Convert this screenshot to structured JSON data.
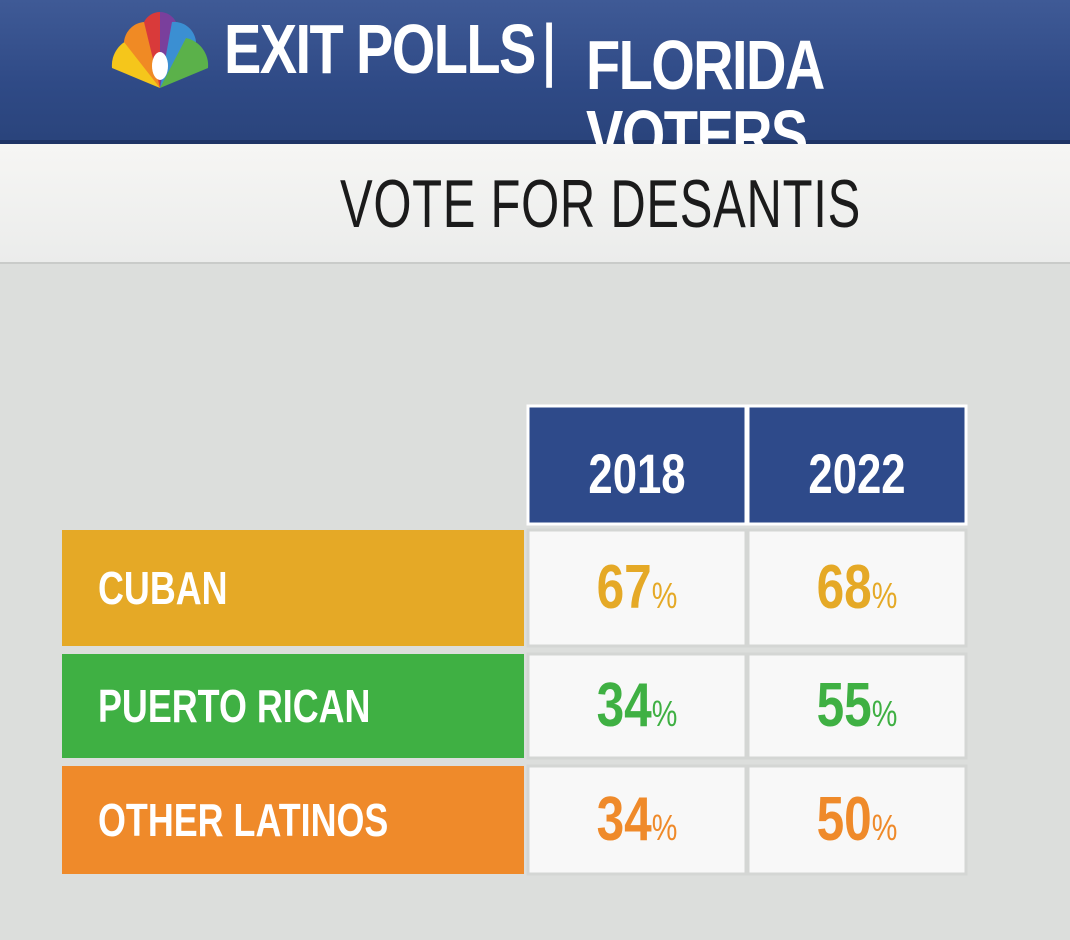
{
  "header": {
    "left": "EXIT POLLS",
    "divider": "|",
    "right": "FLORIDA VOTERS",
    "logo": "peacock-logo"
  },
  "subtitle": "VOTE FOR DESANTIS",
  "colors": {
    "header_bg": "#2f4a86",
    "column_head_bg": "#2e4a8a",
    "cuban": "#e5a926",
    "puerto_rican": "#3fb043",
    "other_latinos": "#ef8a2a"
  },
  "chart_data": {
    "type": "table",
    "title": "VOTE FOR DESANTIS",
    "columns": [
      "2018",
      "2022"
    ],
    "rows": [
      {
        "label": "CUBAN",
        "values": [
          67,
          68
        ],
        "display": [
          "67",
          "68"
        ],
        "unit": "%",
        "color": "#e5a926"
      },
      {
        "label": "PUERTO RICAN",
        "values": [
          34,
          55
        ],
        "display": [
          "34",
          "55"
        ],
        "unit": "%",
        "color": "#3fb043"
      },
      {
        "label": "OTHER LATINOS",
        "values": [
          34,
          50
        ],
        "display": [
          "34",
          "50"
        ],
        "unit": "%",
        "color": "#ef8a2a"
      }
    ]
  }
}
